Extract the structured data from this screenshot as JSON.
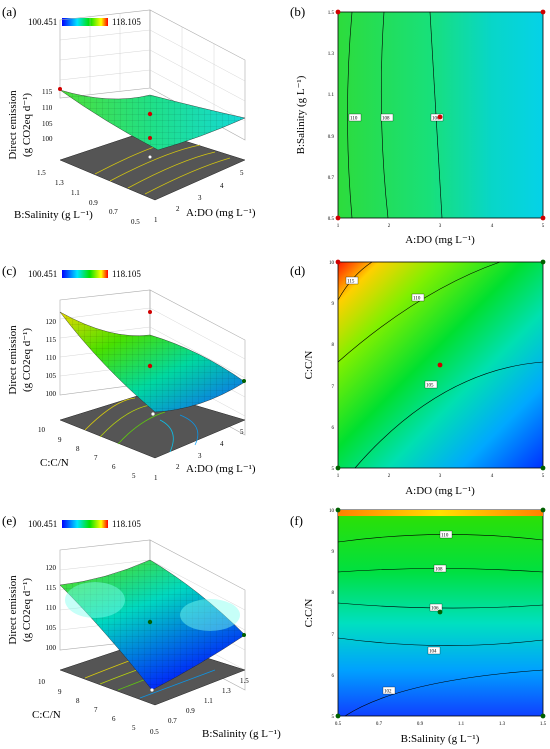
{
  "colorbar": {
    "min": "100.451",
    "max": "118.105"
  },
  "chart_data": [
    {
      "panel": "(a)",
      "type": "surface3d",
      "title": "",
      "zlabel_line1": "Direct emission",
      "zlabel_line2": "(g CO2eq d⁻¹)",
      "xlabel": "A:DO (mg L⁻¹)",
      "ylabel": "B:Salinity (g L⁻¹)",
      "x_ticks": [
        "1",
        "2",
        "3",
        "4",
        "5"
      ],
      "y_ticks": [
        "0.5",
        "0.7",
        "0.9",
        "1.1",
        "1.3",
        "1.5"
      ],
      "z_ticks": [
        "100",
        "105",
        "110",
        "115"
      ],
      "z_range": [
        100,
        118.105
      ],
      "surface": {
        "corner_00": 110,
        "corner_10": 108,
        "corner_01": 108,
        "corner_11": 103.5
      }
    },
    {
      "panel": "(b)",
      "type": "contour",
      "xlabel": "A:DO (mg L⁻¹)",
      "ylabel": "B:Salinity (g L⁻¹)",
      "x_ticks": [
        "1",
        "2",
        "3",
        "4",
        "5"
      ],
      "y_ticks": [
        "0.5",
        "0.7",
        "0.9",
        "1.1",
        "1.3",
        "1.5"
      ],
      "x_range": [
        1,
        5
      ],
      "y_range": [
        0.5,
        1.5
      ],
      "contour_labels": [
        "110",
        "108",
        "106"
      ]
    },
    {
      "panel": "(c)",
      "type": "surface3d",
      "zlabel_line1": "Direct emission",
      "zlabel_line2": "(g CO2eq d⁻¹)",
      "xlabel": "A:DO (mg L⁻¹)",
      "ylabel": "C:C/N",
      "x_ticks": [
        "1",
        "2",
        "3",
        "4",
        "5"
      ],
      "y_ticks": [
        "5",
        "6",
        "7",
        "8",
        "9",
        "10"
      ],
      "z_ticks": [
        "100",
        "105",
        "110",
        "115",
        "120"
      ],
      "z_range": [
        100,
        120
      ],
      "surface": {
        "corner_00": 109,
        "corner_10": 101,
        "corner_01": 117,
        "corner_11": 109
      }
    },
    {
      "panel": "(d)",
      "type": "contour",
      "xlabel": "A:DO (mg L⁻¹)",
      "ylabel": "C:C/N",
      "x_ticks": [
        "1",
        "2",
        "3",
        "4",
        "5"
      ],
      "y_ticks": [
        "5",
        "6",
        "7",
        "8",
        "9",
        "10"
      ],
      "x_range": [
        1,
        5
      ],
      "y_range": [
        5,
        10
      ],
      "contour_labels": [
        "115",
        "110",
        "105"
      ]
    },
    {
      "panel": "(e)",
      "type": "surface3d",
      "zlabel_line1": "Direct emission",
      "zlabel_line2": "(g CO2eq d⁻¹)",
      "xlabel": "B:Salinity (g L⁻¹)",
      "ylabel": "C:C/N",
      "x_ticks": [
        "0.5",
        "0.7",
        "0.9",
        "1.1",
        "1.3",
        "1.5"
      ],
      "y_ticks": [
        "5",
        "6",
        "7",
        "8",
        "9",
        "10"
      ],
      "z_ticks": [
        "100",
        "105",
        "110",
        "115",
        "120"
      ],
      "z_range": [
        100,
        120
      ],
      "surface": {
        "corner_00": 101,
        "corner_10": 102,
        "corner_01": 111,
        "corner_11": 113
      }
    },
    {
      "panel": "(f)",
      "type": "contour",
      "xlabel": "B:Salinity (g L⁻¹)",
      "ylabel": "C:C/N",
      "x_ticks": [
        "0.5",
        "0.7",
        "0.9",
        "1.1",
        "1.3",
        "1.5"
      ],
      "y_ticks": [
        "5",
        "6",
        "7",
        "8",
        "9",
        "10"
      ],
      "x_range": [
        0.5,
        1.5
      ],
      "y_range": [
        5,
        10
      ],
      "contour_labels": [
        "110",
        "108",
        "106",
        "104",
        "102"
      ]
    }
  ]
}
